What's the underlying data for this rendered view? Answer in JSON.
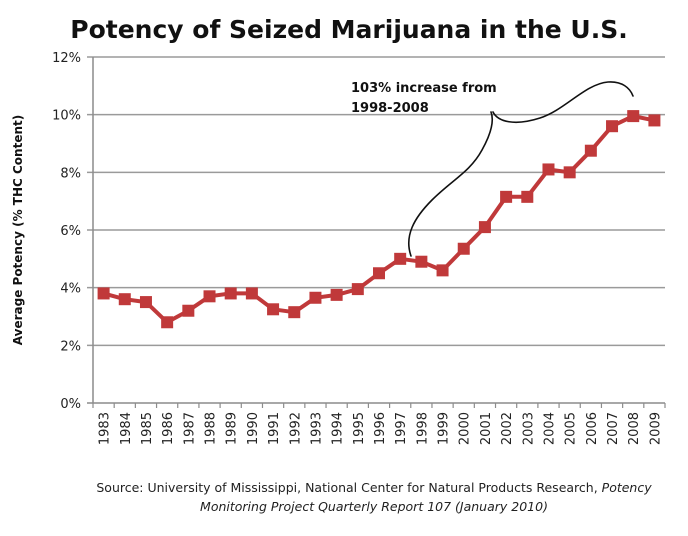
{
  "chart_data": {
    "type": "line",
    "title": "Potency of Seized Marijuana in the U.S.",
    "xlabel": "",
    "ylabel": "Average Potency (% THC Content)",
    "ylim": [
      0,
      12
    ],
    "yticks": [
      0,
      2,
      4,
      6,
      8,
      10,
      12
    ],
    "ytick_labels": [
      "0%",
      "2%",
      "4%",
      "6%",
      "8%",
      "10%",
      "12%"
    ],
    "grid": true,
    "legend": "none",
    "categories": [
      "1983",
      "1984",
      "1985",
      "1986",
      "1987",
      "1988",
      "1989",
      "1990",
      "1991",
      "1992",
      "1993",
      "1994",
      "1995",
      "1996",
      "1997",
      "1998",
      "1999",
      "2000",
      "2001",
      "2002",
      "2003",
      "2004",
      "2005",
      "2006",
      "2007",
      "2008",
      "2009"
    ],
    "series": [
      {
        "name": "Average Potency (% THC)",
        "color": "#C0393A",
        "marker": "square",
        "values": [
          3.8,
          3.6,
          3.5,
          2.8,
          3.2,
          3.7,
          3.8,
          3.8,
          3.25,
          3.15,
          3.65,
          3.75,
          3.95,
          4.5,
          5.0,
          4.9,
          4.6,
          5.35,
          6.1,
          7.15,
          7.15,
          8.1,
          8.0,
          8.75,
          9.6,
          9.95,
          9.8
        ]
      }
    ],
    "annotations": [
      {
        "text_lines": [
          "103% increase from",
          "1998-2008"
        ],
        "brace_from": "1998",
        "brace_to": "2008"
      }
    ]
  },
  "source": {
    "line1_regular": "Source: University of Mississippi, National Center for Natural Products Research, ",
    "line1_italic": "Potency",
    "line2_italic": "Monitoring Project Quarterly Report 107 (January 2010)"
  },
  "colors": {
    "series": "#C0393A",
    "grid": "#9A9A9A",
    "axis": "#8C8C8C",
    "text": "#111111"
  }
}
